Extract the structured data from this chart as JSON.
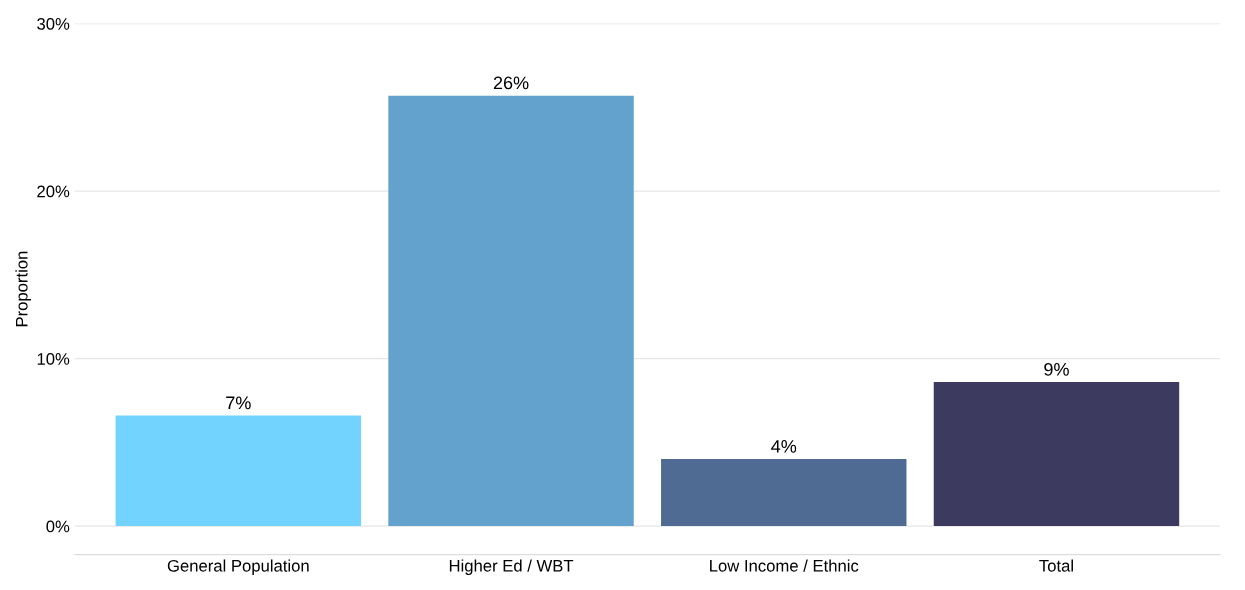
{
  "chart_data": {
    "type": "bar",
    "ylabel": "Proportion",
    "categories": [
      "General Population",
      "Higher Ed / WBT",
      "Low Income / Ethnic",
      "Total"
    ],
    "values": [
      6.6,
      25.7,
      4.0,
      8.6
    ],
    "value_labels": [
      "7%",
      "26%",
      "4%",
      "9%"
    ],
    "colors": [
      "#72d3fe",
      "#62a2cc",
      "#4f6b93",
      "#3d3a60"
    ],
    "ylim": [
      -1.7,
      30
    ],
    "yticks": [
      {
        "value": 0,
        "label": "0%"
      },
      {
        "value": 10,
        "label": "10%"
      },
      {
        "value": 20,
        "label": "20%"
      },
      {
        "value": 30,
        "label": "30%"
      }
    ],
    "grid": "y",
    "legend": false
  }
}
